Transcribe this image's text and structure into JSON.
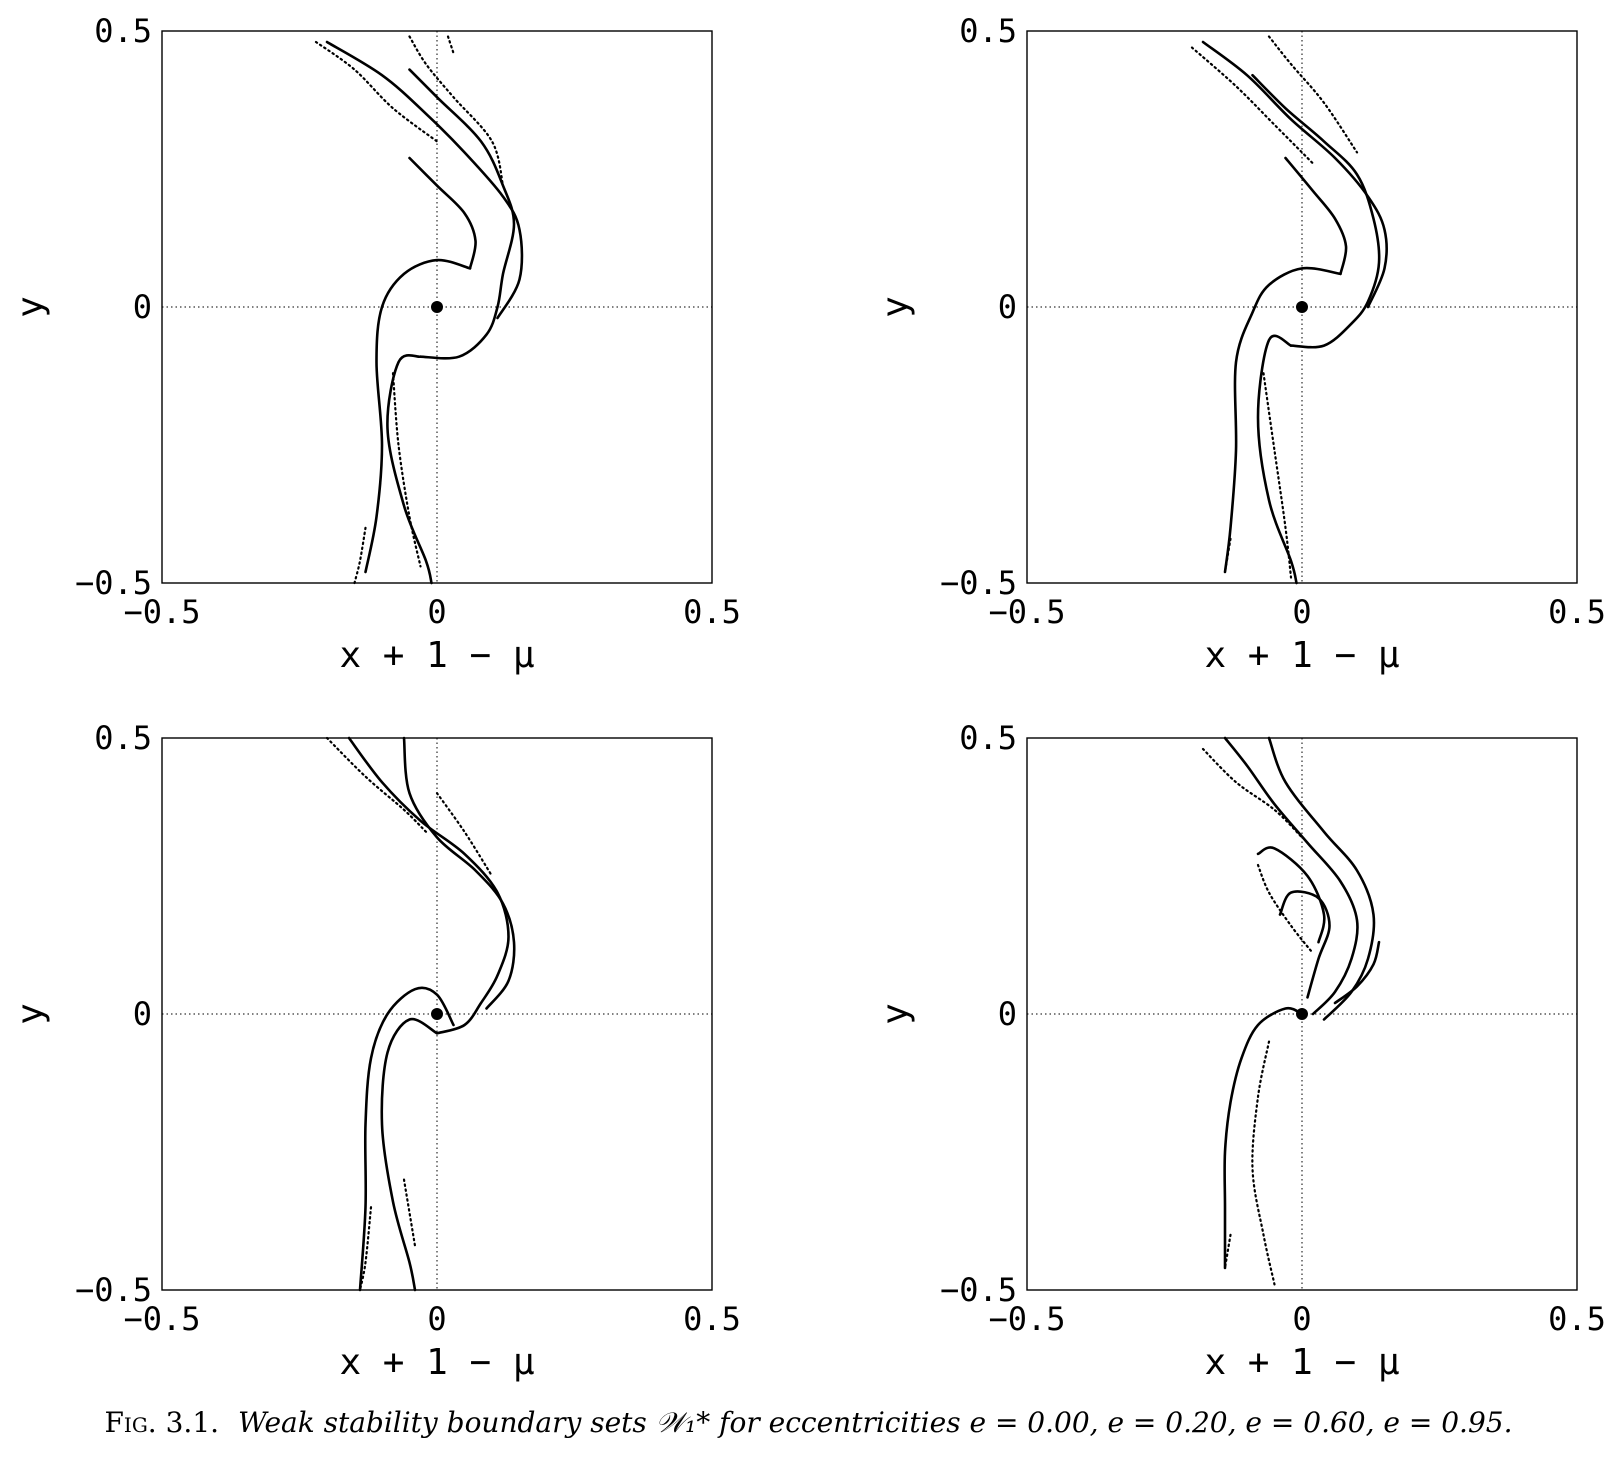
{
  "caption": {
    "label": "Fig. 3.1.",
    "text": "Weak stability boundary sets 𝒲₁* for eccentricities e = 0.00, e = 0.20, e = 0.60, e = 0.95."
  },
  "chart_data": [
    {
      "type": "scatter",
      "eccentricity": "e = 0.00",
      "xlabel": "x + 1 − μ",
      "ylabel": "y",
      "xlim": [
        -0.5,
        0.5
      ],
      "ylim": [
        -0.5,
        0.5
      ],
      "xticks": [
        "−0.5",
        "0",
        "0.5"
      ],
      "yticks": [
        "−0.5",
        "0",
        "0.5"
      ],
      "center_point": [
        0,
        0
      ],
      "curves": [
        [
          [
            0.06,
            0.07
          ],
          [
            0.0,
            0.085
          ],
          [
            -0.06,
            0.06
          ],
          [
            -0.1,
            0.0
          ],
          [
            -0.11,
            -0.1
          ],
          [
            -0.1,
            -0.25
          ],
          [
            -0.11,
            -0.38
          ],
          [
            -0.13,
            -0.48
          ]
        ],
        [
          [
            -0.03,
            -0.09
          ],
          [
            -0.07,
            -0.1
          ],
          [
            -0.09,
            -0.22
          ],
          [
            -0.06,
            -0.36
          ],
          [
            -0.02,
            -0.46
          ],
          [
            -0.01,
            -0.5
          ]
        ],
        [
          [
            -0.03,
            -0.09
          ],
          [
            0.04,
            -0.09
          ],
          [
            0.09,
            -0.05
          ],
          [
            0.11,
            0.0
          ],
          [
            0.12,
            0.06
          ],
          [
            0.14,
            0.15
          ],
          [
            0.12,
            0.22
          ],
          [
            0.08,
            0.3
          ],
          [
            0.0,
            0.38
          ],
          [
            -0.05,
            0.43
          ]
        ],
        [
          [
            0.11,
            -0.02
          ],
          [
            0.15,
            0.05
          ],
          [
            0.15,
            0.14
          ],
          [
            0.12,
            0.2
          ],
          [
            0.05,
            0.28
          ],
          [
            -0.02,
            0.35
          ],
          [
            -0.1,
            0.42
          ],
          [
            -0.2,
            0.48
          ]
        ],
        [
          [
            0.06,
            0.07
          ],
          [
            0.07,
            0.12
          ],
          [
            0.05,
            0.17
          ],
          [
            0.0,
            0.22
          ],
          [
            -0.05,
            0.27
          ]
        ]
      ],
      "scatter_lines": [
        [
          [
            -0.22,
            0.48
          ],
          [
            -0.15,
            0.43
          ],
          [
            -0.08,
            0.36
          ],
          [
            0.0,
            0.3
          ]
        ],
        [
          [
            -0.05,
            0.49
          ],
          [
            -0.02,
            0.44
          ],
          [
            0.03,
            0.38
          ],
          [
            0.1,
            0.3
          ],
          [
            0.12,
            0.22
          ]
        ],
        [
          [
            0.02,
            0.49
          ],
          [
            0.03,
            0.46
          ]
        ],
        [
          [
            -0.08,
            -0.12
          ],
          [
            -0.07,
            -0.25
          ],
          [
            -0.05,
            -0.38
          ],
          [
            -0.03,
            -0.47
          ]
        ],
        [
          [
            -0.13,
            -0.4
          ],
          [
            -0.14,
            -0.46
          ],
          [
            -0.15,
            -0.5
          ]
        ]
      ]
    },
    {
      "type": "scatter",
      "eccentricity": "e = 0.20",
      "xlabel": "x + 1 − μ",
      "ylabel": "y",
      "xlim": [
        -0.5,
        0.5
      ],
      "ylim": [
        -0.5,
        0.5
      ],
      "xticks": [
        "−0.5",
        "0",
        "0.5"
      ],
      "yticks": [
        "−0.5",
        "0",
        "0.5"
      ],
      "center_point": [
        0,
        0
      ],
      "curves": [
        [
          [
            0.07,
            0.06
          ],
          [
            0.0,
            0.07
          ],
          [
            -0.06,
            0.04
          ],
          [
            -0.09,
            -0.01
          ],
          [
            -0.12,
            -0.1
          ],
          [
            -0.12,
            -0.26
          ],
          [
            -0.13,
            -0.4
          ],
          [
            -0.14,
            -0.48
          ]
        ],
        [
          [
            -0.02,
            -0.07
          ],
          [
            -0.06,
            -0.06
          ],
          [
            -0.08,
            -0.2
          ],
          [
            -0.06,
            -0.35
          ],
          [
            -0.02,
            -0.46
          ],
          [
            -0.01,
            -0.5
          ]
        ],
        [
          [
            -0.02,
            -0.07
          ],
          [
            0.04,
            -0.07
          ],
          [
            0.09,
            -0.03
          ],
          [
            0.12,
            0.01
          ],
          [
            0.14,
            0.08
          ],
          [
            0.13,
            0.16
          ],
          [
            0.1,
            0.24
          ],
          [
            0.04,
            0.3
          ],
          [
            -0.03,
            0.36
          ],
          [
            -0.09,
            0.42
          ]
        ],
        [
          [
            0.12,
            0.0
          ],
          [
            0.15,
            0.07
          ],
          [
            0.15,
            0.14
          ],
          [
            0.12,
            0.2
          ],
          [
            0.06,
            0.27
          ],
          [
            -0.02,
            0.34
          ],
          [
            -0.1,
            0.42
          ],
          [
            -0.18,
            0.48
          ]
        ],
        [
          [
            0.07,
            0.06
          ],
          [
            0.08,
            0.11
          ],
          [
            0.06,
            0.16
          ],
          [
            0.02,
            0.21
          ],
          [
            -0.03,
            0.27
          ]
        ]
      ],
      "scatter_lines": [
        [
          [
            -0.2,
            0.47
          ],
          [
            -0.12,
            0.4
          ],
          [
            -0.05,
            0.33
          ],
          [
            0.02,
            0.26
          ]
        ],
        [
          [
            -0.06,
            0.49
          ],
          [
            -0.02,
            0.44
          ],
          [
            0.04,
            0.37
          ],
          [
            0.1,
            0.28
          ]
        ],
        [
          [
            -0.07,
            -0.12
          ],
          [
            -0.05,
            -0.26
          ],
          [
            -0.03,
            -0.4
          ],
          [
            -0.02,
            -0.49
          ]
        ],
        [
          [
            -0.13,
            -0.42
          ],
          [
            -0.14,
            -0.48
          ]
        ]
      ]
    },
    {
      "type": "scatter",
      "eccentricity": "e = 0.60",
      "xlabel": "x + 1 − μ",
      "ylabel": "y",
      "xlim": [
        -0.5,
        0.5
      ],
      "ylim": [
        -0.5,
        0.5
      ],
      "xticks": [
        "−0.5",
        "0",
        "0.5"
      ],
      "yticks": [
        "−0.5",
        "0",
        "0.5"
      ],
      "center_point": [
        0,
        0
      ],
      "curves": [
        [
          [
            0.03,
            -0.02
          ],
          [
            0.0,
            0.035
          ],
          [
            -0.04,
            0.045
          ],
          [
            -0.09,
            0.0
          ],
          [
            -0.12,
            -0.08
          ],
          [
            -0.13,
            -0.2
          ],
          [
            -0.13,
            -0.35
          ],
          [
            -0.14,
            -0.5
          ]
        ],
        [
          [
            0.0,
            -0.035
          ],
          [
            -0.05,
            -0.01
          ],
          [
            -0.09,
            -0.07
          ],
          [
            -0.1,
            -0.2
          ],
          [
            -0.08,
            -0.34
          ],
          [
            -0.05,
            -0.45
          ],
          [
            -0.04,
            -0.5
          ]
        ],
        [
          [
            0.0,
            -0.035
          ],
          [
            0.05,
            -0.02
          ],
          [
            0.08,
            0.02
          ],
          [
            0.11,
            0.07
          ],
          [
            0.13,
            0.14
          ],
          [
            0.11,
            0.22
          ],
          [
            0.05,
            0.29
          ],
          [
            -0.03,
            0.35
          ],
          [
            -0.1,
            0.42
          ],
          [
            -0.16,
            0.5
          ]
        ],
        [
          [
            0.09,
            0.01
          ],
          [
            0.13,
            0.06
          ],
          [
            0.14,
            0.13
          ],
          [
            0.12,
            0.2
          ],
          [
            0.07,
            0.26
          ],
          [
            0.0,
            0.32
          ],
          [
            -0.05,
            0.4
          ],
          [
            -0.06,
            0.5
          ]
        ]
      ],
      "scatter_lines": [
        [
          [
            -0.2,
            0.5
          ],
          [
            -0.13,
            0.43
          ],
          [
            -0.06,
            0.37
          ],
          [
            -0.02,
            0.33
          ]
        ],
        [
          [
            0.0,
            0.4
          ],
          [
            0.05,
            0.33
          ],
          [
            0.1,
            0.25
          ]
        ],
        [
          [
            -0.12,
            -0.35
          ],
          [
            -0.13,
            -0.45
          ],
          [
            -0.14,
            -0.5
          ]
        ],
        [
          [
            -0.06,
            -0.3
          ],
          [
            -0.04,
            -0.42
          ]
        ]
      ]
    },
    {
      "type": "scatter",
      "eccentricity": "e = 0.95",
      "xlabel": "x + 1 − μ",
      "ylabel": "y",
      "xlim": [
        -0.5,
        0.5
      ],
      "ylim": [
        -0.5,
        0.5
      ],
      "xticks": [
        "−0.5",
        "0",
        "0.5"
      ],
      "yticks": [
        "−0.5",
        "0",
        "0.5"
      ],
      "center_point": [
        0,
        0
      ],
      "curves": [
        [
          [
            0.0,
            0.0
          ],
          [
            -0.03,
            0.01
          ],
          [
            -0.08,
            -0.02
          ],
          [
            -0.11,
            -0.08
          ],
          [
            -0.13,
            -0.16
          ],
          [
            -0.14,
            -0.25
          ],
          [
            -0.14,
            -0.35
          ],
          [
            -0.14,
            -0.46
          ]
        ],
        [
          [
            0.02,
            0.0
          ],
          [
            0.06,
            0.04
          ],
          [
            0.09,
            0.1
          ],
          [
            0.1,
            0.17
          ],
          [
            0.07,
            0.24
          ],
          [
            0.01,
            0.31
          ],
          [
            -0.05,
            0.38
          ],
          [
            -0.1,
            0.45
          ],
          [
            -0.14,
            0.5
          ]
        ],
        [
          [
            0.04,
            -0.01
          ],
          [
            0.09,
            0.04
          ],
          [
            0.12,
            0.1
          ],
          [
            0.13,
            0.18
          ],
          [
            0.1,
            0.26
          ],
          [
            0.04,
            0.33
          ],
          [
            -0.03,
            0.42
          ],
          [
            -0.06,
            0.5
          ]
        ],
        [
          [
            0.01,
            0.03
          ],
          [
            0.03,
            0.1
          ],
          [
            0.05,
            0.16
          ],
          [
            0.03,
            0.21
          ],
          [
            -0.02,
            0.22
          ],
          [
            -0.04,
            0.18
          ]
        ],
        [
          [
            -0.08,
            0.29
          ],
          [
            -0.05,
            0.3
          ],
          [
            0.01,
            0.25
          ],
          [
            0.04,
            0.18
          ],
          [
            0.03,
            0.13
          ]
        ],
        [
          [
            0.06,
            0.02
          ],
          [
            0.1,
            0.05
          ],
          [
            0.13,
            0.09
          ],
          [
            0.14,
            0.13
          ]
        ]
      ],
      "scatter_lines": [
        [
          [
            -0.18,
            0.48
          ],
          [
            -0.12,
            0.42
          ],
          [
            -0.05,
            0.37
          ],
          [
            0.0,
            0.32
          ]
        ],
        [
          [
            -0.08,
            0.27
          ],
          [
            -0.06,
            0.22
          ],
          [
            -0.02,
            0.16
          ],
          [
            0.02,
            0.11
          ]
        ],
        [
          [
            -0.06,
            -0.05
          ],
          [
            -0.08,
            -0.15
          ],
          [
            -0.09,
            -0.28
          ],
          [
            -0.07,
            -0.4
          ],
          [
            -0.05,
            -0.49
          ]
        ],
        [
          [
            -0.13,
            -0.4
          ],
          [
            -0.14,
            -0.46
          ]
        ]
      ]
    }
  ]
}
